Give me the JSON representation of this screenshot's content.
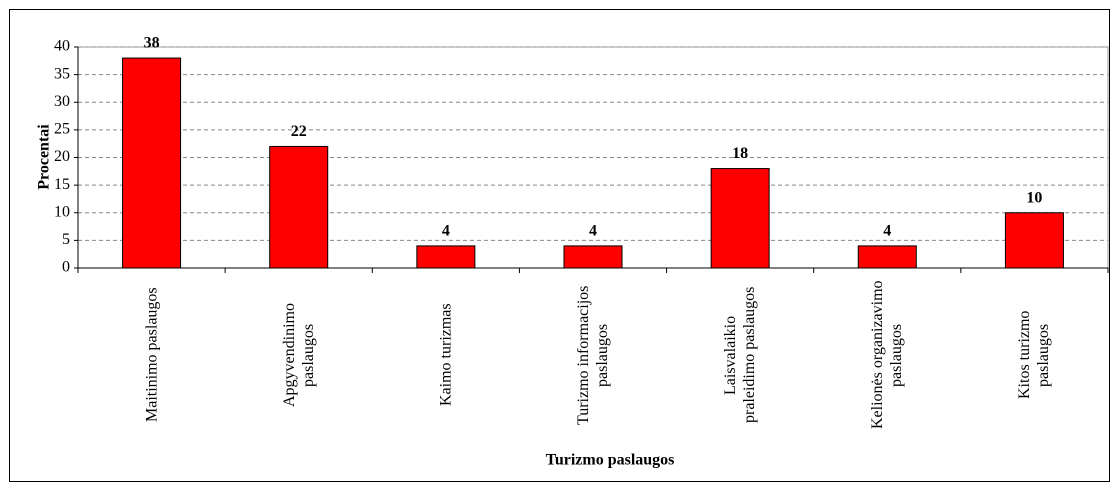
{
  "chart_data": {
    "type": "bar",
    "categories": [
      "Maitinimo paslaugos",
      "Apgyvendinimo paslaugos",
      "Kaimo turizmas",
      "Turizmo informacijos paslaugos",
      "Laisvalaikio praleidimo paslaugos",
      "Kelionės organizavimo paslaugos",
      "Kitos turizmo paslaugos"
    ],
    "values": [
      38,
      22,
      4,
      4,
      18,
      4,
      10
    ],
    "color": "#ff0000",
    "xlabel": "Turizmo paslaugos",
    "ylabel": "Procentai",
    "ylim": [
      0,
      40
    ],
    "yticks": [
      0,
      5,
      10,
      15,
      20,
      25,
      30,
      35,
      40
    ],
    "grid": true
  }
}
